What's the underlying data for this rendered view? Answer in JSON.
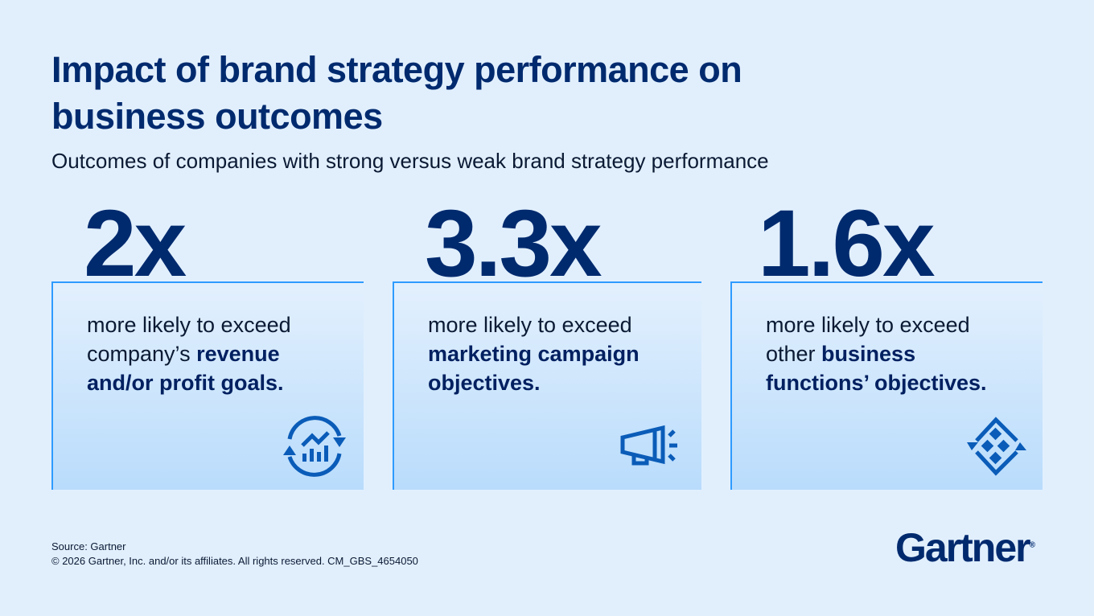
{
  "title": "Impact of brand strategy performance on business outcomes",
  "subtitle": "Outcomes of companies with strong versus weak brand strategy performance",
  "cards": [
    {
      "stat": "2x",
      "prefix": "more likely to exceed company’s ",
      "bold": "revenue and/or profit goals.",
      "icon": "revenue-growth-cycle-icon"
    },
    {
      "stat": "3.3x",
      "prefix": "more likely to exceed ",
      "bold": "marketing campaign objectives.",
      "icon": "megaphone-icon"
    },
    {
      "stat": "1.6x",
      "prefix": "more likely to exceed other ",
      "bold": "business functions’ objectives.",
      "icon": "diamond-cycle-icon"
    }
  ],
  "footer": {
    "source": "Source: Gartner",
    "copyright": "© 2026 Gartner, Inc. and/or its affiliates. All rights reserved. CM_GBS_4654050"
  },
  "logo": {
    "text": "Gartner",
    "mark": "®"
  },
  "colors": {
    "accent": "#2e9bff",
    "navy": "#002a6e",
    "icon": "#0a5cb8"
  }
}
